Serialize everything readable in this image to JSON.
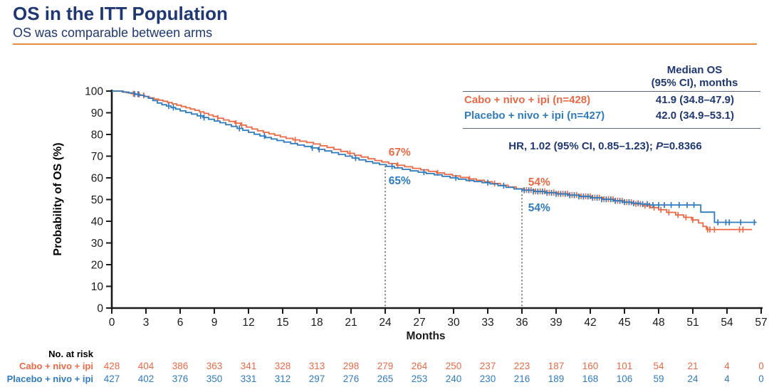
{
  "page": {
    "title": "OS in the ITT Population",
    "subtitle": "OS was comparable between arms"
  },
  "colors": {
    "cabo": "#EB6A45",
    "placebo": "#2E7CBF",
    "navy": "#1F3874",
    "axis": "#1A1A1A",
    "divider": "#E98A3C",
    "guide": "#333333"
  },
  "legend": {
    "header_line1": "Median OS",
    "header_line2": "(95% CI), months",
    "rows": [
      {
        "label": "Cabo + nivo + ipi (n=428)",
        "value": "41.9 (34.8–47.9)",
        "color_key": "cabo"
      },
      {
        "label": "Placebo + nivo + ipi (n=427)",
        "value": "42.0 (34.9–53.1)",
        "color_key": "placebo"
      }
    ],
    "hr_prefix": "HR, 1.02 (95% CI, 0.85–1.23); ",
    "hr_p": "P",
    "hr_value": "=0.8366"
  },
  "chart_data": {
    "type": "line",
    "subtype": "kaplan_meier_step",
    "xlabel": "Months",
    "ylabel": "Probability of OS (%)",
    "xlim": [
      0,
      57
    ],
    "ylim": [
      0,
      100
    ],
    "xticks": [
      0,
      3,
      6,
      9,
      12,
      15,
      18,
      21,
      24,
      27,
      30,
      33,
      36,
      39,
      42,
      45,
      48,
      51,
      54,
      57
    ],
    "yticks": [
      0,
      10,
      20,
      30,
      40,
      50,
      60,
      70,
      80,
      90,
      100
    ],
    "grid": false,
    "guide_lines": [
      {
        "month": 24,
        "top_pct": 65.5
      },
      {
        "month": 36,
        "top_pct": 54.0
      }
    ],
    "annotations": [
      {
        "text": "67%",
        "x_month": 24.3,
        "y_pct": 70.2,
        "color_key": "cabo"
      },
      {
        "text": "65%",
        "x_month": 24.3,
        "y_pct": 57.0,
        "color_key": "placebo"
      },
      {
        "text": "54%",
        "x_month": 36.55,
        "y_pct": 56.4,
        "color_key": "cabo"
      },
      {
        "text": "54%",
        "x_month": 36.55,
        "y_pct": 44.6,
        "color_key": "placebo"
      }
    ],
    "series": [
      {
        "name": "Cabo + nivo + ipi (n=428)",
        "color_key": "cabo",
        "points": [
          [
            0,
            100
          ],
          [
            0.9,
            99.6
          ],
          [
            1.3,
            99.2
          ],
          [
            1.7,
            98.8
          ],
          [
            2.1,
            98.4
          ],
          [
            2.5,
            98.0
          ],
          [
            2.9,
            97.5
          ],
          [
            3.3,
            96.9
          ],
          [
            3.7,
            96.3
          ],
          [
            4.1,
            95.8
          ],
          [
            4.5,
            95.3
          ],
          [
            4.9,
            94.7
          ],
          [
            5.3,
            94.1
          ],
          [
            5.7,
            93.5
          ],
          [
            6.1,
            92.9
          ],
          [
            6.5,
            92.3
          ],
          [
            6.9,
            91.7
          ],
          [
            7.3,
            91.1
          ],
          [
            7.7,
            90.4
          ],
          [
            8.1,
            89.7
          ],
          [
            8.5,
            89.0
          ],
          [
            8.9,
            88.3
          ],
          [
            9.3,
            87.5
          ],
          [
            9.8,
            86.7
          ],
          [
            10.3,
            86.0
          ],
          [
            10.8,
            85.2
          ],
          [
            11.3,
            84.3
          ],
          [
            11.8,
            83.4
          ],
          [
            12.3,
            82.5
          ],
          [
            12.8,
            81.7
          ],
          [
            13.3,
            81.0
          ],
          [
            13.8,
            80.3
          ],
          [
            14.3,
            79.6
          ],
          [
            14.8,
            78.9
          ],
          [
            15.3,
            78.2
          ],
          [
            15.9,
            77.5
          ],
          [
            16.5,
            76.9
          ],
          [
            17.1,
            76.3
          ],
          [
            17.7,
            75.6
          ],
          [
            18.3,
            74.8
          ],
          [
            18.9,
            74.0
          ],
          [
            19.5,
            73.1
          ],
          [
            20.1,
            72.2
          ],
          [
            20.7,
            71.3
          ],
          [
            21.3,
            70.4
          ],
          [
            21.9,
            69.6
          ],
          [
            22.5,
            68.8
          ],
          [
            23.1,
            68.0
          ],
          [
            23.7,
            67.3
          ],
          [
            24.3,
            66.6
          ],
          [
            25,
            65.8
          ],
          [
            25.7,
            65.1
          ],
          [
            26.4,
            64.4
          ],
          [
            27.1,
            63.7
          ],
          [
            27.8,
            63.0
          ],
          [
            28.5,
            62.3
          ],
          [
            29.2,
            61.6
          ],
          [
            29.9,
            60.9
          ],
          [
            30.6,
            60.2
          ],
          [
            31.3,
            59.5
          ],
          [
            32,
            58.9
          ],
          [
            32.7,
            58.2
          ],
          [
            33.4,
            57.4
          ],
          [
            34.1,
            56.6
          ],
          [
            34.8,
            55.8
          ],
          [
            35.5,
            55.0
          ],
          [
            36.2,
            54.4
          ],
          [
            37.1,
            53.8
          ],
          [
            38.1,
            53.2
          ],
          [
            39.1,
            52.7
          ],
          [
            40.1,
            52.1
          ],
          [
            41.1,
            51.5
          ],
          [
            42.1,
            50.9
          ],
          [
            43.1,
            50.2
          ],
          [
            44.1,
            49.5
          ],
          [
            45,
            48.8
          ],
          [
            45.8,
            48.0
          ],
          [
            46.6,
            47.2
          ],
          [
            47.3,
            46.3
          ],
          [
            48,
            45.3
          ],
          [
            48.7,
            44.1
          ],
          [
            49.5,
            42.9
          ],
          [
            50.2,
            41.8
          ],
          [
            50.9,
            40.6
          ],
          [
            51.5,
            39.2
          ],
          [
            51.9,
            37.6
          ],
          [
            52.2,
            36.2
          ],
          [
            56.2,
            36.2
          ]
        ],
        "censor_marks": [
          1.9,
          2.4,
          2.8,
          9.3,
          10.9,
          11.4,
          16.1,
          20.9,
          25.1,
          28.6,
          31.4,
          33.6,
          36.4,
          36.8,
          37.2,
          37.6,
          38.0,
          38.4,
          38.8,
          39.2,
          39.6,
          40.0,
          40.4,
          40.8,
          41.2,
          41.6,
          42.0,
          42.4,
          42.8,
          43.2,
          43.6,
          44.0,
          44.4,
          44.8,
          45.2,
          45.6,
          46.0,
          46.4,
          46.8,
          47.2,
          47.6,
          48.2,
          48.9,
          49.7,
          50.4,
          51.0,
          52.3,
          52.5,
          52.9,
          55.1,
          55.4
        ]
      },
      {
        "name": "Placebo + nivo + ipi (n=427)",
        "color_key": "placebo",
        "points": [
          [
            0,
            100
          ],
          [
            1,
            99.5
          ],
          [
            1.5,
            99.1
          ],
          [
            2,
            98.6
          ],
          [
            2.4,
            98.1
          ],
          [
            2.8,
            97.5
          ],
          [
            3.2,
            96.7
          ],
          [
            3.6,
            95.6
          ],
          [
            4,
            94.5
          ],
          [
            4.4,
            93.7
          ],
          [
            4.8,
            93.1
          ],
          [
            5.2,
            92.4
          ],
          [
            5.6,
            91.7
          ],
          [
            6,
            90.9
          ],
          [
            6.5,
            90.1
          ],
          [
            7,
            89.4
          ],
          [
            7.5,
            88.6
          ],
          [
            8,
            87.8
          ],
          [
            8.5,
            87.0
          ],
          [
            9,
            86.2
          ],
          [
            9.5,
            85.4
          ],
          [
            10,
            84.5
          ],
          [
            10.5,
            83.7
          ],
          [
            11,
            82.8
          ],
          [
            11.5,
            81.9
          ],
          [
            12,
            81.0
          ],
          [
            12.5,
            80.1
          ],
          [
            13,
            79.3
          ],
          [
            13.5,
            78.6
          ],
          [
            14,
            77.9
          ],
          [
            14.5,
            77.2
          ],
          [
            15.1,
            76.5
          ],
          [
            15.7,
            75.8
          ],
          [
            16.3,
            75.1
          ],
          [
            16.9,
            74.5
          ],
          [
            17.5,
            73.8
          ],
          [
            18.1,
            73.1
          ],
          [
            18.7,
            72.4
          ],
          [
            19.3,
            71.6
          ],
          [
            19.9,
            70.8
          ],
          [
            20.5,
            70.0
          ],
          [
            21.1,
            69.1
          ],
          [
            21.7,
            68.3
          ],
          [
            22.3,
            67.5
          ],
          [
            22.9,
            66.8
          ],
          [
            23.5,
            66.1
          ],
          [
            24.1,
            65.3
          ],
          [
            24.8,
            64.6
          ],
          [
            25.5,
            63.9
          ],
          [
            26.2,
            63.2
          ],
          [
            26.9,
            62.6
          ],
          [
            27.6,
            62.0
          ],
          [
            28.3,
            61.4
          ],
          [
            29,
            60.7
          ],
          [
            29.7,
            60.0
          ],
          [
            30.4,
            59.4
          ],
          [
            31.1,
            58.8
          ],
          [
            31.8,
            58.3
          ],
          [
            32.5,
            57.8
          ],
          [
            33.2,
            57.2
          ],
          [
            33.9,
            56.4
          ],
          [
            34.6,
            55.6
          ],
          [
            35.3,
            54.9
          ],
          [
            36,
            54.3
          ],
          [
            37,
            53.7
          ],
          [
            38,
            53.1
          ],
          [
            39,
            52.6
          ],
          [
            40,
            52.0
          ],
          [
            41,
            51.4
          ],
          [
            42,
            50.8
          ],
          [
            43,
            50.1
          ],
          [
            44,
            49.4
          ],
          [
            44.8,
            48.8
          ],
          [
            45.6,
            48.3
          ],
          [
            46.4,
            47.9
          ],
          [
            47.2,
            47.5
          ],
          [
            51.7,
            44.2
          ],
          [
            52.9,
            39.5
          ],
          [
            56.6,
            39.5
          ]
        ],
        "censor_marks": [
          2.0,
          2.3,
          5.0,
          5.4,
          7.8,
          8.1,
          11.2,
          13.4,
          17.6,
          18.2,
          21.4,
          24.6,
          27.4,
          30.2,
          33.0,
          34.4,
          36.2,
          36.6,
          37.0,
          37.4,
          37.8,
          38.2,
          38.6,
          39.0,
          39.4,
          39.8,
          40.2,
          40.6,
          41.0,
          41.4,
          41.8,
          42.2,
          42.6,
          43.0,
          43.4,
          43.8,
          44.2,
          44.6,
          45.0,
          45.4,
          45.8,
          46.2,
          46.6,
          47.0,
          47.5,
          48.0,
          48.5,
          49.1,
          49.8,
          50.5,
          51.1,
          53.2,
          53.9,
          54.2,
          55.2,
          56.4
        ]
      }
    ]
  },
  "risk_table": {
    "title": "No. at risk",
    "timepoints": [
      0,
      3,
      6,
      9,
      12,
      15,
      18,
      21,
      24,
      27,
      30,
      33,
      36,
      39,
      42,
      45,
      48,
      51,
      54,
      57
    ],
    "rows": [
      {
        "label": "Cabo + nivo + ipi",
        "color_key": "cabo",
        "values": [
          428,
          404,
          386,
          363,
          341,
          328,
          313,
          298,
          279,
          264,
          250,
          237,
          223,
          187,
          160,
          101,
          54,
          21,
          4,
          0
        ]
      },
      {
        "label": "Placebo + nivo + ipi",
        "color_key": "placebo",
        "values": [
          427,
          402,
          376,
          350,
          331,
          312,
          297,
          276,
          265,
          253,
          240,
          230,
          216,
          189,
          168,
          106,
          59,
          24,
          4,
          0
        ]
      }
    ]
  }
}
